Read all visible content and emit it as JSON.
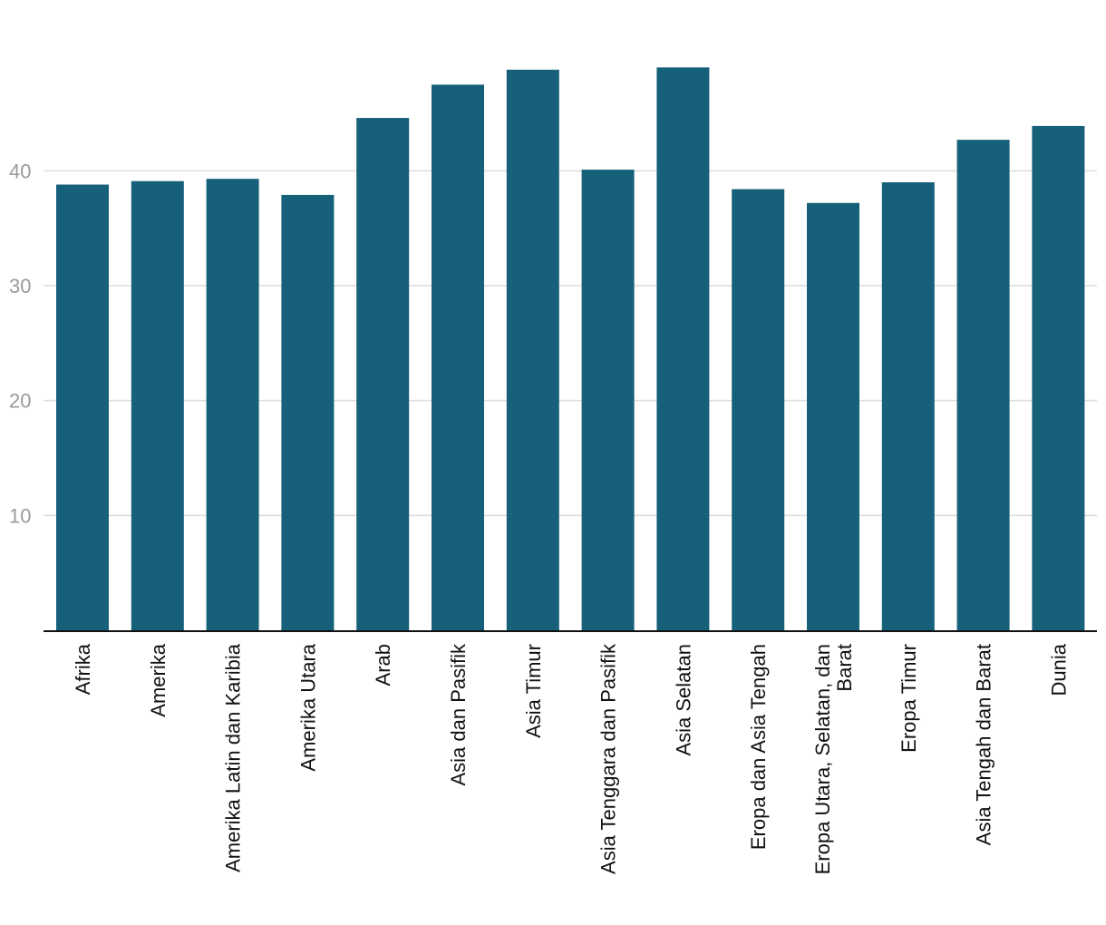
{
  "colors": {
    "bar": "#176079",
    "grid": "#dcdcdc",
    "axis": "#111111",
    "tick_text": "#9a9a9a",
    "label_text": "#111111"
  },
  "chart_data": {
    "type": "bar",
    "title": "",
    "xlabel": "",
    "ylabel": "",
    "ylim": [
      0,
      52.5
    ],
    "yticks": [
      10,
      20,
      30,
      40
    ],
    "grid": true,
    "legend": "none",
    "categories": [
      [
        "Afrika"
      ],
      [
        "Amerika"
      ],
      [
        "Amerika Latin dan Karibia"
      ],
      [
        "Amerika Utara"
      ],
      [
        "Arab"
      ],
      [
        "Asia dan Pasifik"
      ],
      [
        "Asia Timur"
      ],
      [
        "Asia Tenggara dan Pasifik"
      ],
      [
        "Asia Selatan"
      ],
      [
        "Eropa dan Asia Tengah"
      ],
      [
        "Eropa Utara, Selatan, dan",
        "Barat"
      ],
      [
        "Eropa Timur"
      ],
      [
        "Asia Tengah dan Barat"
      ],
      [
        "Dunia"
      ]
    ],
    "values": [
      38.8,
      39.1,
      39.3,
      37.9,
      44.6,
      47.5,
      48.8,
      40.1,
      49.0,
      38.4,
      37.2,
      39.0,
      42.7,
      43.9
    ]
  }
}
